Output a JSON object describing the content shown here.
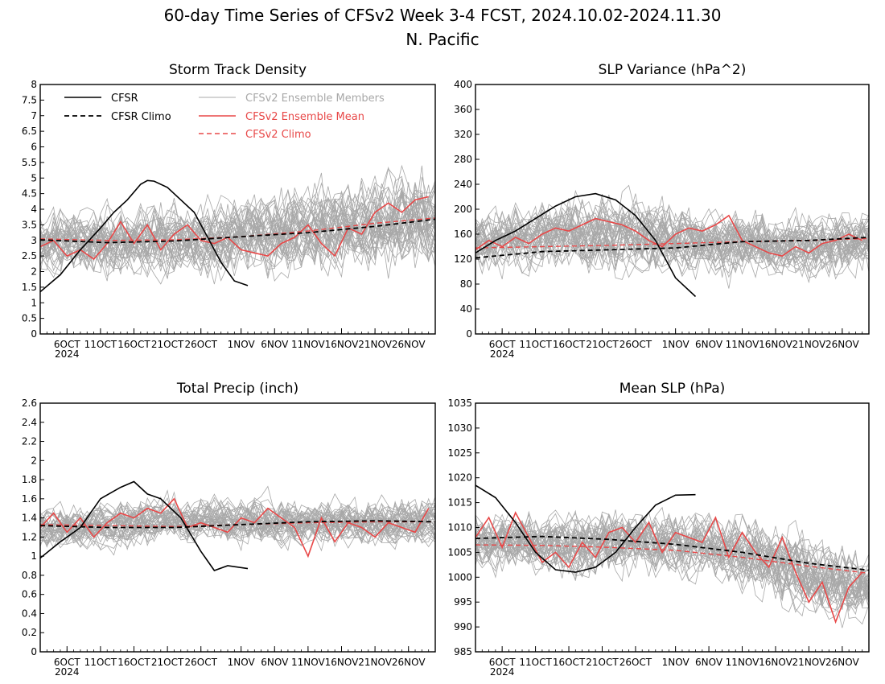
{
  "figure": {
    "title_line1": "60-day Time Series of CFSv2 Week 3-4 FCST, 2024.10.02-2024.11.30",
    "title_line2": "N. Pacific"
  },
  "colors": {
    "observed": "#000000",
    "ensemble_members": "#a8a8a8",
    "ensemble_mean": "#e84848",
    "cfsv2_climo": "#e84848"
  },
  "legend": {
    "cfsr": "CFSR",
    "cfsr_climo": "CFSR Climo",
    "members": "CFSv2 Ensemble Members",
    "mean": "CFSv2 Ensemble Mean",
    "cfsv2_climo": "CFSv2 Climo"
  },
  "chart_data": [
    {
      "type": "line",
      "title": "Storm Track Density",
      "xlabel": "",
      "ylabel": "",
      "x_range": [
        "2024-10-02",
        "2024-11-30"
      ],
      "x_ticks": [
        "6OCT",
        "11OCT",
        "16OCT",
        "21OCT",
        "26OCT",
        "1NOV",
        "6NOV",
        "11NOV",
        "16NOV",
        "21NOV",
        "26NOV"
      ],
      "x_year_label": "2024",
      "ylim": [
        0,
        8
      ],
      "y_ticks": [
        "0",
        "0.5",
        "1",
        "1.5",
        "2",
        "2.5",
        "3",
        "3.5",
        "4",
        "4.5",
        "5",
        "5.5",
        "6",
        "6.5",
        "7",
        "7.5",
        "8"
      ],
      "legend_position": "top-left",
      "ensemble": {
        "mean": [
          3.0,
          3.0,
          2.9,
          3.0,
          3.0,
          3.1,
          3.2,
          3.2,
          3.3,
          3.4,
          3.5,
          3.6,
          3.7
        ],
        "spread": [
          0.9,
          0.9,
          1.0,
          1.0,
          1.0,
          1.0,
          1.1,
          1.2,
          1.3,
          1.3,
          1.4,
          1.4,
          1.4
        ],
        "members_count": 40
      },
      "series": [
        {
          "name": "CFSR",
          "x": [
            "2024-10-02",
            "2024-10-05",
            "2024-10-08",
            "2024-10-11",
            "2024-10-13",
            "2024-10-15",
            "2024-10-17",
            "2024-10-18",
            "2024-10-19",
            "2024-10-21",
            "2024-10-23",
            "2024-10-25",
            "2024-10-27",
            "2024-10-29",
            "2024-10-31",
            "2024-11-02"
          ],
          "y": [
            1.35,
            1.9,
            2.7,
            3.4,
            3.9,
            4.3,
            4.8,
            4.92,
            4.9,
            4.7,
            4.3,
            3.9,
            3.1,
            2.3,
            1.7,
            1.55
          ]
        },
        {
          "name": "CFSR Climo",
          "x": [
            "2024-10-02",
            "2024-10-12",
            "2024-10-22",
            "2024-11-01",
            "2024-11-11",
            "2024-11-21",
            "2024-11-30"
          ],
          "y": [
            3.02,
            2.93,
            2.98,
            3.12,
            3.25,
            3.45,
            3.68
          ]
        },
        {
          "name": "CFSv2 Ensemble Mean",
          "x": [
            "2024-10-02",
            "2024-10-04",
            "2024-10-06",
            "2024-10-08",
            "2024-10-10",
            "2024-10-12",
            "2024-10-14",
            "2024-10-16",
            "2024-10-18",
            "2024-10-20",
            "2024-10-22",
            "2024-10-24",
            "2024-10-26",
            "2024-10-28",
            "2024-10-30",
            "2024-11-01",
            "2024-11-03",
            "2024-11-05",
            "2024-11-07",
            "2024-11-09",
            "2024-11-11",
            "2024-11-13",
            "2024-11-15",
            "2024-11-17",
            "2024-11-19",
            "2024-11-21",
            "2024-11-23",
            "2024-11-25",
            "2024-11-27",
            "2024-11-29"
          ],
          "y": [
            2.8,
            3.0,
            2.5,
            2.7,
            2.4,
            2.9,
            3.6,
            2.9,
            3.5,
            2.7,
            3.2,
            3.5,
            3.0,
            2.9,
            3.1,
            2.7,
            2.6,
            2.5,
            2.9,
            3.1,
            3.5,
            2.9,
            2.5,
            3.4,
            3.2,
            3.9,
            4.2,
            3.9,
            4.3,
            4.4
          ]
        },
        {
          "name": "CFSv2 Climo",
          "x": [
            "2024-10-02",
            "2024-10-12",
            "2024-10-22",
            "2024-11-01",
            "2024-11-11",
            "2024-11-21",
            "2024-11-30"
          ],
          "y": [
            3.05,
            3.0,
            3.02,
            3.12,
            3.3,
            3.55,
            3.72
          ]
        }
      ]
    },
    {
      "type": "line",
      "title": "SLP Variance (hPa^2)",
      "xlabel": "",
      "ylabel": "",
      "x_range": [
        "2024-10-02",
        "2024-11-30"
      ],
      "x_ticks": [
        "6OCT",
        "11OCT",
        "16OCT",
        "21OCT",
        "26OCT",
        "1NOV",
        "6NOV",
        "11NOV",
        "16NOV",
        "21NOV",
        "26NOV"
      ],
      "x_year_label": "2024",
      "ylim": [
        0,
        400
      ],
      "y_ticks": [
        "0",
        "40",
        "80",
        "120",
        "160",
        "200",
        "240",
        "280",
        "320",
        "360",
        "400"
      ],
      "ensemble": {
        "mean": [
          150,
          150,
          155,
          160,
          160,
          158,
          155,
          150,
          145,
          140,
          140,
          145,
          150
        ],
        "spread": [
          45,
          45,
          50,
          55,
          55,
          55,
          50,
          50,
          50,
          45,
          45,
          45,
          45
        ],
        "members_count": 40
      },
      "series": [
        {
          "name": "CFSR",
          "x": [
            "2024-10-02",
            "2024-10-05",
            "2024-10-08",
            "2024-10-11",
            "2024-10-14",
            "2024-10-17",
            "2024-10-20",
            "2024-10-23",
            "2024-10-26",
            "2024-10-29",
            "2024-11-01",
            "2024-11-04"
          ],
          "y": [
            130,
            150,
            165,
            185,
            205,
            220,
            225,
            215,
            190,
            150,
            90,
            60
          ]
        },
        {
          "name": "CFSR Climo",
          "x": [
            "2024-10-02",
            "2024-10-12",
            "2024-10-22",
            "2024-11-01",
            "2024-11-11",
            "2024-11-21",
            "2024-11-30"
          ],
          "y": [
            122,
            132,
            135,
            138,
            148,
            150,
            155
          ]
        },
        {
          "name": "CFSv2 Ensemble Mean",
          "x": [
            "2024-10-02",
            "2024-10-04",
            "2024-10-06",
            "2024-10-08",
            "2024-10-10",
            "2024-10-12",
            "2024-10-14",
            "2024-10-16",
            "2024-10-18",
            "2024-10-20",
            "2024-10-22",
            "2024-10-24",
            "2024-10-26",
            "2024-10-28",
            "2024-10-30",
            "2024-11-01",
            "2024-11-03",
            "2024-11-05",
            "2024-11-07",
            "2024-11-09",
            "2024-11-11",
            "2024-11-13",
            "2024-11-15",
            "2024-11-17",
            "2024-11-19",
            "2024-11-21",
            "2024-11-23",
            "2024-11-25",
            "2024-11-27",
            "2024-11-29"
          ],
          "y": [
            135,
            150,
            140,
            155,
            145,
            160,
            170,
            165,
            175,
            185,
            180,
            175,
            165,
            150,
            140,
            160,
            170,
            165,
            175,
            190,
            150,
            140,
            130,
            125,
            140,
            130,
            145,
            150,
            160,
            150
          ]
        },
        {
          "name": "CFSv2 Climo",
          "x": [
            "2024-10-02",
            "2024-10-12",
            "2024-10-22",
            "2024-11-01",
            "2024-11-11",
            "2024-11-21",
            "2024-11-30"
          ],
          "y": [
            138,
            140,
            142,
            145,
            148,
            150,
            153
          ]
        }
      ]
    },
    {
      "type": "line",
      "title": "Total Precip (inch)",
      "xlabel": "",
      "ylabel": "",
      "x_range": [
        "2024-10-02",
        "2024-11-30"
      ],
      "x_ticks": [
        "6OCT",
        "11OCT",
        "16OCT",
        "21OCT",
        "26OCT",
        "1NOV",
        "6NOV",
        "11NOV",
        "16NOV",
        "21NOV",
        "26NOV"
      ],
      "x_year_label": "2024",
      "ylim": [
        0,
        2.6
      ],
      "y_ticks": [
        "0",
        "0.2",
        "0.4",
        "0.6",
        "0.8",
        "1",
        "1.2",
        "1.4",
        "1.6",
        "1.8",
        "2",
        "2.2",
        "2.4",
        "2.6"
      ],
      "ensemble": {
        "mean": [
          1.32,
          1.3,
          1.32,
          1.35,
          1.38,
          1.38,
          1.36,
          1.38,
          1.36,
          1.35,
          1.35,
          1.36,
          1.36
        ],
        "spread": [
          0.2,
          0.2,
          0.22,
          0.22,
          0.22,
          0.22,
          0.22,
          0.22,
          0.22,
          0.22,
          0.22,
          0.22,
          0.22
        ],
        "members_count": 40
      },
      "series": [
        {
          "name": "CFSR",
          "x": [
            "2024-10-02",
            "2024-10-05",
            "2024-10-08",
            "2024-10-11",
            "2024-10-14",
            "2024-10-16",
            "2024-10-18",
            "2024-10-20",
            "2024-10-23",
            "2024-10-26",
            "2024-10-28",
            "2024-10-30",
            "2024-11-02"
          ],
          "y": [
            0.98,
            1.15,
            1.3,
            1.6,
            1.72,
            1.78,
            1.65,
            1.6,
            1.4,
            1.05,
            0.85,
            0.9,
            0.87
          ]
        },
        {
          "name": "CFSR Climo",
          "x": [
            "2024-10-02",
            "2024-10-12",
            "2024-10-22",
            "2024-11-01",
            "2024-11-11",
            "2024-11-21",
            "2024-11-30"
          ],
          "y": [
            1.32,
            1.3,
            1.3,
            1.33,
            1.36,
            1.37,
            1.36
          ]
        },
        {
          "name": "CFSv2 Ensemble Mean",
          "x": [
            "2024-10-02",
            "2024-10-04",
            "2024-10-06",
            "2024-10-08",
            "2024-10-10",
            "2024-10-12",
            "2024-10-14",
            "2024-10-16",
            "2024-10-18",
            "2024-10-20",
            "2024-10-22",
            "2024-10-24",
            "2024-10-26",
            "2024-10-28",
            "2024-10-30",
            "2024-11-01",
            "2024-11-03",
            "2024-11-05",
            "2024-11-07",
            "2024-11-09",
            "2024-11-11",
            "2024-11-13",
            "2024-11-15",
            "2024-11-17",
            "2024-11-19",
            "2024-11-21",
            "2024-11-23",
            "2024-11-25",
            "2024-11-27",
            "2024-11-29"
          ],
          "y": [
            1.3,
            1.45,
            1.25,
            1.4,
            1.2,
            1.35,
            1.45,
            1.4,
            1.5,
            1.45,
            1.6,
            1.3,
            1.35,
            1.3,
            1.25,
            1.4,
            1.35,
            1.5,
            1.4,
            1.3,
            1.0,
            1.4,
            1.15,
            1.35,
            1.3,
            1.2,
            1.35,
            1.3,
            1.25,
            1.5
          ]
        },
        {
          "name": "CFSv2 Climo",
          "x": [
            "2024-10-02",
            "2024-10-12",
            "2024-10-22",
            "2024-11-01",
            "2024-11-11",
            "2024-11-21",
            "2024-11-30"
          ],
          "y": [
            1.33,
            1.32,
            1.31,
            1.33,
            1.35,
            1.36,
            1.36
          ]
        }
      ]
    },
    {
      "type": "line",
      "title": "Mean SLP (hPa)",
      "xlabel": "",
      "ylabel": "",
      "x_range": [
        "2024-10-02",
        "2024-11-30"
      ],
      "x_ticks": [
        "6OCT",
        "11OCT",
        "16OCT",
        "21OCT",
        "26OCT",
        "1NOV",
        "6NOV",
        "11NOV",
        "16NOV",
        "21NOV",
        "26NOV"
      ],
      "x_year_label": "2024",
      "ylim": [
        985,
        1035
      ],
      "y_ticks": [
        "985",
        "990",
        "995",
        "1000",
        "1005",
        "1010",
        "1015",
        "1020",
        "1025",
        "1030",
        "1035"
      ],
      "ensemble": {
        "mean": [
          1007,
          1007.5,
          1007,
          1007,
          1007,
          1007,
          1006.5,
          1006,
          1005,
          1003,
          1001,
          999,
          998
        ],
        "spread": [
          5,
          5,
          5.5,
          6,
          6,
          6,
          6,
          6,
          6,
          6.5,
          7,
          7,
          7
        ],
        "members_count": 40
      },
      "series": [
        {
          "name": "CFSR",
          "x": [
            "2024-10-02",
            "2024-10-05",
            "2024-10-08",
            "2024-10-11",
            "2024-10-14",
            "2024-10-17",
            "2024-10-20",
            "2024-10-23",
            "2024-10-26",
            "2024-10-29",
            "2024-11-01",
            "2024-11-04"
          ],
          "y": [
            1018.5,
            1016,
            1011,
            1005,
            1001.5,
            1001,
            1002,
            1005,
            1010,
            1014.5,
            1016.5,
            1016.6
          ]
        },
        {
          "name": "CFSR Climo",
          "x": [
            "2024-10-02",
            "2024-10-12",
            "2024-10-22",
            "2024-11-01",
            "2024-11-11",
            "2024-11-21",
            "2024-11-30"
          ],
          "y": [
            1007.8,
            1008.2,
            1007.6,
            1006.6,
            1005.0,
            1002.8,
            1001.4
          ]
        },
        {
          "name": "CFSv2 Ensemble Mean",
          "x": [
            "2024-10-02",
            "2024-10-04",
            "2024-10-06",
            "2024-10-08",
            "2024-10-10",
            "2024-10-12",
            "2024-10-14",
            "2024-10-16",
            "2024-10-18",
            "2024-10-20",
            "2024-10-22",
            "2024-10-24",
            "2024-10-26",
            "2024-10-28",
            "2024-10-30",
            "2024-11-01",
            "2024-11-03",
            "2024-11-05",
            "2024-11-07",
            "2024-11-09",
            "2024-11-11",
            "2024-11-13",
            "2024-11-15",
            "2024-11-17",
            "2024-11-19",
            "2024-11-21",
            "2024-11-23",
            "2024-11-25",
            "2024-11-27",
            "2024-11-29"
          ],
          "y": [
            1008,
            1012,
            1006,
            1013,
            1008,
            1003,
            1005,
            1002,
            1007,
            1004,
            1009,
            1010,
            1007,
            1011,
            1005,
            1009,
            1008,
            1007,
            1012,
            1004,
            1009,
            1005,
            1002,
            1008,
            1001,
            995,
            999,
            991,
            998,
            1001
          ]
        },
        {
          "name": "CFSv2 Climo",
          "x": [
            "2024-10-02",
            "2024-10-12",
            "2024-10-22",
            "2024-11-01",
            "2024-11-11",
            "2024-11-21",
            "2024-11-30"
          ],
          "y": [
            1006.5,
            1006.4,
            1006.0,
            1005.4,
            1004.0,
            1002.2,
            1000.8
          ]
        }
      ]
    }
  ]
}
